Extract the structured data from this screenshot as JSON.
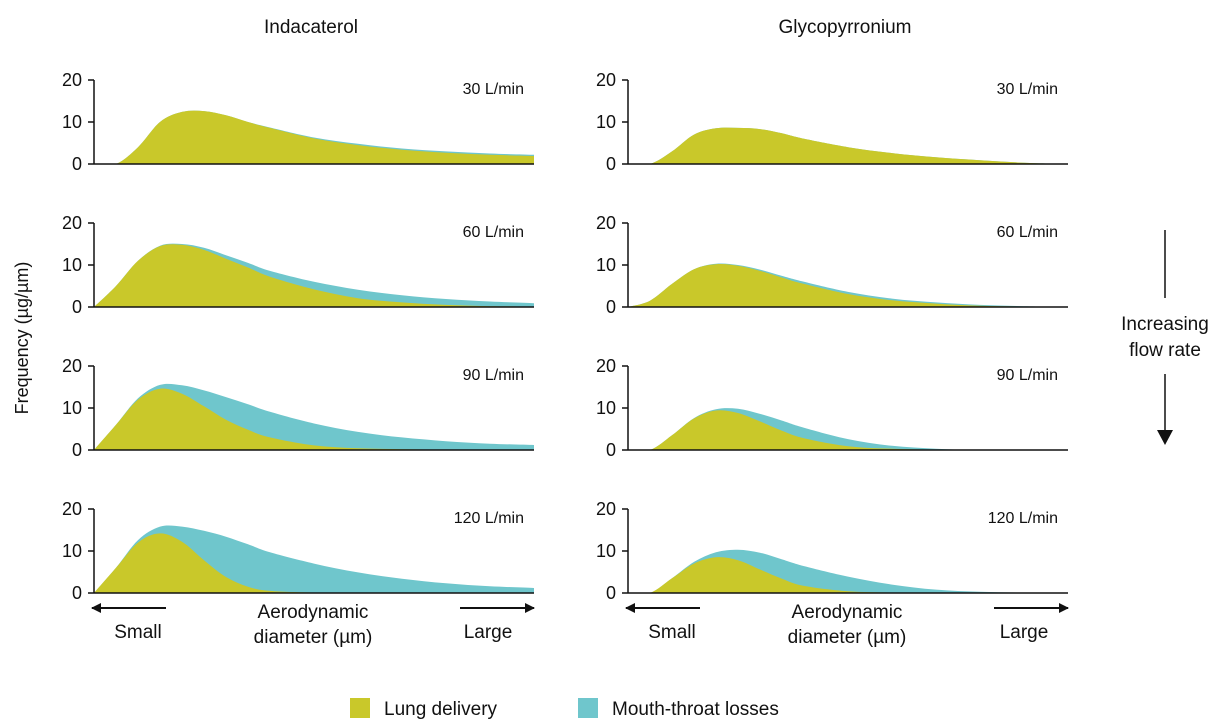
{
  "figure": {
    "ylabel": "Frequency (µg/µm)",
    "side_note_line1": "Increasing",
    "side_note_line2": "flow rate",
    "colors": {
      "lung": "#c9c82a",
      "mouth": "#6fc6cc"
    }
  },
  "legend": [
    {
      "key": "lung",
      "label": "Lung delivery"
    },
    {
      "key": "mouth",
      "label": "Mouth-throat losses"
    }
  ],
  "columns": [
    {
      "title": "Indacaterol",
      "xaxis": {
        "left": "Small",
        "right": "Large",
        "center_line1": "Aerodynamic",
        "center_line2": "diameter (µm)"
      }
    },
    {
      "title": "Glycopyrronium",
      "xaxis": {
        "left": "Small",
        "right": "Large",
        "center_line1": "Aerodynamic",
        "center_line2": "diameter (µm)"
      }
    }
  ],
  "chart_data": [
    {
      "type": "area",
      "drug": "Indacaterol",
      "flow_label": "30 L/min",
      "ylim": [
        0,
        20
      ],
      "yticks": [
        0,
        10,
        20
      ],
      "x": [
        0,
        0.5,
        1,
        1.5,
        2,
        2.5,
        3,
        3.5,
        4,
        5,
        6,
        7,
        8,
        9,
        10
      ],
      "series": [
        {
          "name": "Lung delivery",
          "values": [
            0,
            0,
            4,
            10,
            12.4,
            12.6,
            11.6,
            10,
            8.6,
            6.1,
            4.5,
            3.4,
            2.7,
            2.2,
            1.9
          ]
        },
        {
          "name": "Mouth-throat losses",
          "values": [
            0,
            0,
            0,
            0,
            0,
            0,
            0,
            0,
            0.1,
            0.2,
            0.3,
            0.3,
            0.3,
            0.3,
            0.3
          ]
        }
      ]
    },
    {
      "type": "area",
      "drug": "Indacaterol",
      "flow_label": "60 L/min",
      "ylim": [
        0,
        20
      ],
      "yticks": [
        0,
        10,
        20
      ],
      "x": [
        0,
        0.5,
        1,
        1.5,
        2,
        2.5,
        3,
        3.5,
        4,
        5,
        6,
        7,
        8,
        9,
        10
      ],
      "series": [
        {
          "name": "Lung delivery",
          "values": [
            0,
            5,
            11,
            14.5,
            14.8,
            13.6,
            11.5,
            9.4,
            7.2,
            4.2,
            2.1,
            1.1,
            0.5,
            0.2,
            0.1
          ]
        },
        {
          "name": "Mouth-throat losses",
          "values": [
            0,
            0,
            0,
            0.1,
            0.2,
            0.5,
            0.8,
            1.1,
            1.4,
            1.8,
            2.0,
            1.7,
            1.4,
            1.1,
            0.8
          ]
        }
      ]
    },
    {
      "type": "area",
      "drug": "Indacaterol",
      "flow_label": "90 L/min",
      "ylim": [
        0,
        20
      ],
      "yticks": [
        0,
        10,
        20
      ],
      "x": [
        0,
        0.5,
        1,
        1.5,
        2,
        2.5,
        3,
        3.5,
        4,
        5,
        6,
        7,
        8,
        9,
        10
      ],
      "series": [
        {
          "name": "Lung delivery",
          "values": [
            0,
            6,
            12,
            14.6,
            13.4,
            10.4,
            7.2,
            4.8,
            3.0,
            1.1,
            0.4,
            0.2,
            0.1,
            0,
            0
          ]
        },
        {
          "name": "Mouth-throat losses",
          "values": [
            0,
            0,
            0.3,
            0.9,
            2.0,
            3.8,
            5.4,
            6.1,
            6.1,
            5.2,
            3.9,
            2.8,
            2.0,
            1.5,
            1.2
          ]
        }
      ]
    },
    {
      "type": "area",
      "drug": "Indacaterol",
      "flow_label": "120 L/min",
      "ylim": [
        0,
        20
      ],
      "yticks": [
        0,
        10,
        20
      ],
      "x": [
        0,
        0.5,
        1,
        1.5,
        2,
        2.5,
        3,
        3.5,
        4,
        5,
        6,
        7,
        8,
        9,
        10
      ],
      "series": [
        {
          "name": "Lung delivery",
          "values": [
            0,
            6,
            12,
            14.2,
            12.2,
            7.8,
            3.8,
            1.5,
            0.5,
            0.1,
            0,
            0,
            0,
            0,
            0
          ]
        },
        {
          "name": "Mouth-throat losses",
          "values": [
            0,
            0,
            0.6,
            1.6,
            3.6,
            7.0,
            9.6,
            10.1,
            9.2,
            6.9,
            4.9,
            3.4,
            2.3,
            1.6,
            1.2
          ]
        }
      ]
    },
    {
      "type": "area",
      "drug": "Glycopyrronium",
      "flow_label": "30 L/min",
      "ylim": [
        0,
        20
      ],
      "yticks": [
        0,
        10,
        20
      ],
      "x": [
        0,
        0.5,
        1,
        1.5,
        2,
        2.5,
        3,
        3.5,
        4,
        5,
        6,
        7,
        8,
        9,
        10
      ],
      "series": [
        {
          "name": "Lung delivery",
          "values": [
            0,
            0,
            3,
            7,
            8.5,
            8.6,
            8.3,
            7.3,
            6.0,
            4.0,
            2.6,
            1.6,
            0.9,
            0.3,
            0
          ]
        },
        {
          "name": "Mouth-throat losses",
          "values": [
            0,
            0,
            0,
            0,
            0,
            0,
            0,
            0,
            0,
            0,
            0,
            0,
            0,
            0,
            0
          ]
        }
      ]
    },
    {
      "type": "area",
      "drug": "Glycopyrronium",
      "flow_label": "60 L/min",
      "ylim": [
        0,
        20
      ],
      "yticks": [
        0,
        10,
        20
      ],
      "x": [
        0,
        0.5,
        1,
        1.5,
        2,
        2.5,
        3,
        3.5,
        4,
        5,
        6,
        7,
        8,
        9,
        10
      ],
      "series": [
        {
          "name": "Lung delivery",
          "values": [
            0,
            1.5,
            5.5,
            9.0,
            10.2,
            9.8,
            8.6,
            7.0,
            5.5,
            3.1,
            1.6,
            0.8,
            0.3,
            0.1,
            0
          ]
        },
        {
          "name": "Mouth-throat losses",
          "values": [
            0,
            0,
            0,
            0,
            0.1,
            0.2,
            0.3,
            0.4,
            0.5,
            0.5,
            0.4,
            0.3,
            0.2,
            0.1,
            0
          ]
        }
      ]
    },
    {
      "type": "area",
      "drug": "Glycopyrronium",
      "flow_label": "90 L/min",
      "ylim": [
        0,
        20
      ],
      "yticks": [
        0,
        10,
        20
      ],
      "x": [
        0,
        0.5,
        1,
        1.5,
        2,
        2.5,
        3,
        3.5,
        4,
        5,
        6,
        7,
        8,
        9,
        10
      ],
      "series": [
        {
          "name": "Lung delivery",
          "values": [
            0,
            0,
            3.5,
            7.5,
            9.4,
            8.8,
            6.8,
            4.6,
            2.8,
            0.9,
            0.3,
            0.1,
            0,
            0,
            0
          ]
        },
        {
          "name": "Mouth-throat losses",
          "values": [
            0,
            0,
            0,
            0.1,
            0.3,
            1.0,
            1.8,
            2.4,
            2.5,
            1.7,
            0.7,
            0.2,
            0,
            0,
            0
          ]
        }
      ]
    },
    {
      "type": "area",
      "drug": "Glycopyrronium",
      "flow_label": "120 L/min",
      "ylim": [
        0,
        20
      ],
      "yticks": [
        0,
        10,
        20
      ],
      "x": [
        0,
        0.5,
        1,
        1.5,
        2,
        2.5,
        3,
        3.5,
        4,
        5,
        6,
        7,
        8,
        9,
        10
      ],
      "series": [
        {
          "name": "Lung delivery",
          "values": [
            0,
            0,
            3.5,
            7.0,
            8.5,
            7.8,
            5.6,
            3.4,
            1.7,
            0.4,
            0.1,
            0,
            0,
            0,
            0
          ]
        },
        {
          "name": "Mouth-throat losses",
          "values": [
            0,
            0,
            0,
            0.4,
            1.2,
            2.5,
            4.0,
            4.6,
            4.7,
            3.5,
            1.9,
            0.8,
            0.3,
            0.1,
            0
          ]
        }
      ]
    }
  ]
}
